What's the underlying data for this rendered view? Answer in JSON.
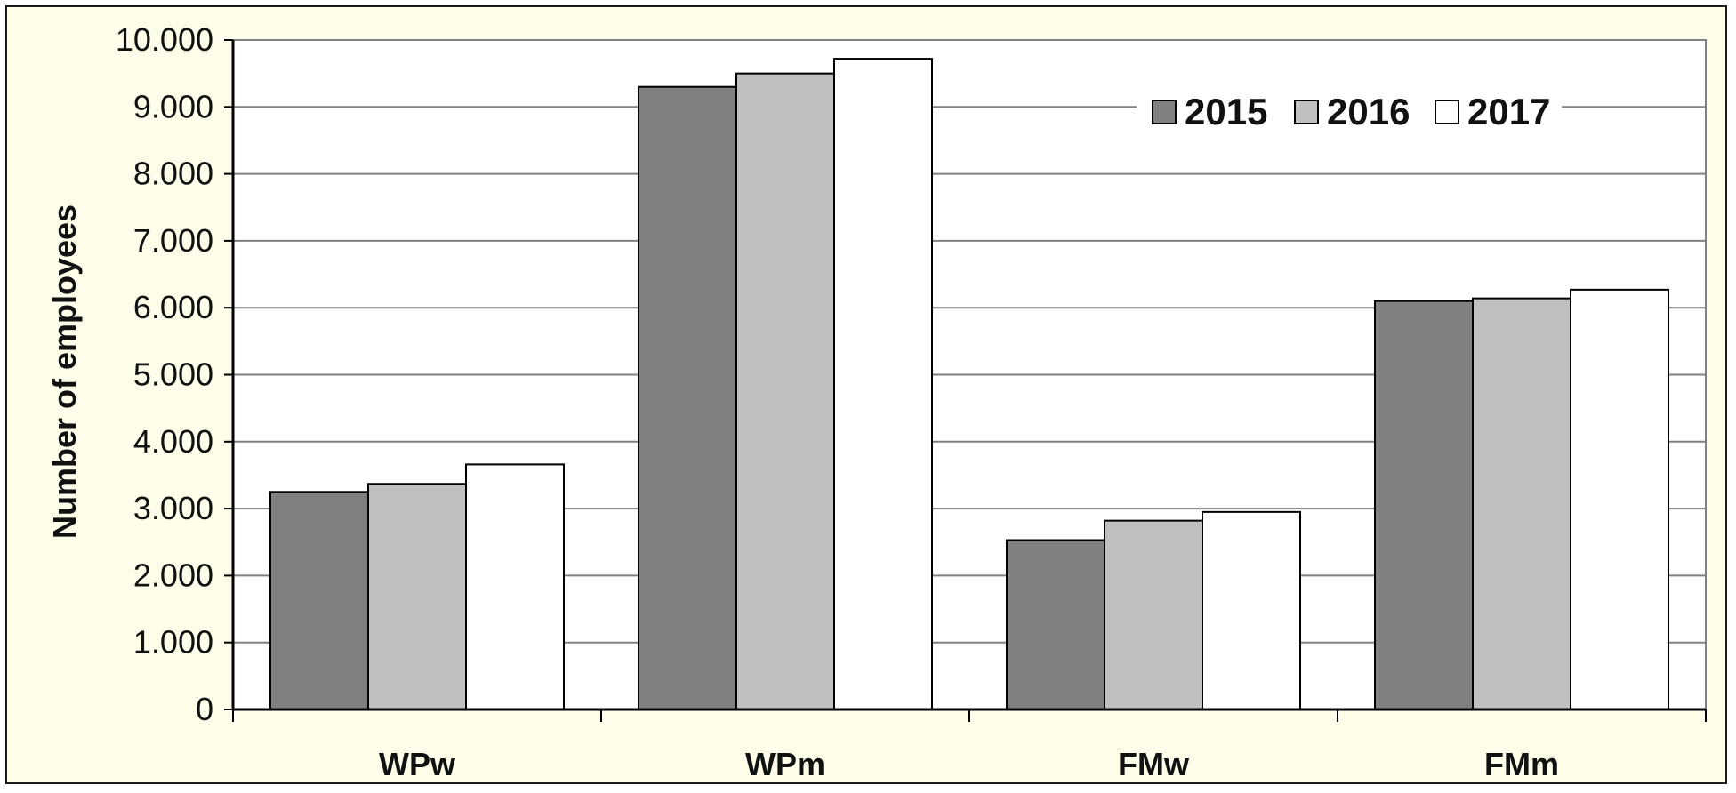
{
  "chart_data": {
    "type": "bar",
    "categories": [
      "WPw",
      "WPm",
      "FMw",
      "FMm"
    ],
    "series": [
      {
        "name": "2015",
        "values": [
          3250,
          9300,
          2530,
          6100
        ],
        "color": "#808080"
      },
      {
        "name": "2016",
        "values": [
          3370,
          9500,
          2820,
          6140
        ],
        "color": "#c0c0c0"
      },
      {
        "name": "2017",
        "values": [
          3660,
          9720,
          2950,
          6270
        ],
        "color": "#ffffff"
      }
    ],
    "title": "",
    "xlabel": "",
    "ylabel": "Number of employees",
    "ylim": [
      0,
      10000
    ],
    "yticks": [
      0,
      1000,
      2000,
      3000,
      4000,
      5000,
      6000,
      7000,
      8000,
      9000,
      10000
    ],
    "ytick_labels": [
      "0",
      "1.000",
      "2.000",
      "3.000",
      "4.000",
      "5.000",
      "6.000",
      "7.000",
      "8.000",
      "9.000",
      "10.000"
    ],
    "grid": true,
    "legend_position": "top-right",
    "colors": {
      "background": "#fdfde9",
      "plot_background": "#ffffff",
      "gridline": "#808080",
      "bar_outline": "#000000"
    }
  }
}
